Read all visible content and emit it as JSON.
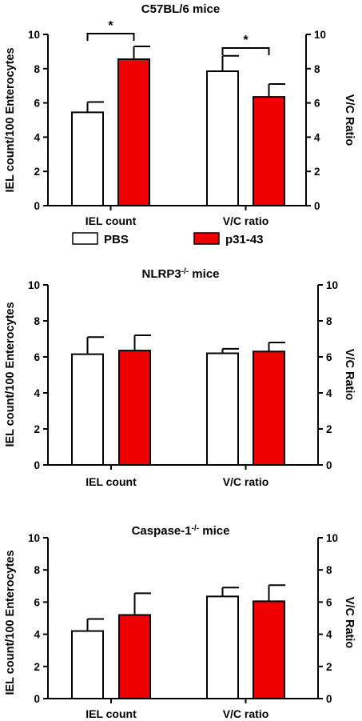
{
  "legend": {
    "items": [
      {
        "label": "PBS",
        "color": "#ffffff"
      },
      {
        "label": "p31-43",
        "color": "#ee0000"
      }
    ]
  },
  "chart_data": [
    {
      "type": "bar",
      "title": "C57BL/6 mice",
      "title_sup": "",
      "title_suffix": "",
      "categories": [
        "IEL count",
        "V/C ratio"
      ],
      "ylabel": "IEL count/100 Enterocytes",
      "y2label": "V/C Ratio",
      "ylim": [
        0,
        10
      ],
      "y2lim": [
        0,
        10
      ],
      "yticks": [
        "0",
        "2",
        "4",
        "6",
        "8",
        "10"
      ],
      "series": [
        {
          "name": "PBS",
          "color": "#ffffff",
          "values": [
            5.45,
            7.85
          ],
          "errors": [
            0.6,
            0.9
          ]
        },
        {
          "name": "p31-43",
          "color": "#ee0000",
          "values": [
            8.55,
            6.35
          ],
          "errors": [
            0.75,
            0.75
          ]
        }
      ],
      "significance": [
        {
          "category": 0,
          "label": "*"
        },
        {
          "category": 1,
          "label": "*"
        }
      ]
    },
    {
      "type": "bar",
      "title": "NLRP3",
      "title_sup": "-/-",
      "title_suffix": " mice",
      "categories": [
        "IEL count",
        "V/C ratio"
      ],
      "ylabel": "IEL count/100 Enterocytes",
      "y2label": "V/C Ratio",
      "ylim": [
        0,
        10
      ],
      "y2lim": [
        0,
        10
      ],
      "yticks": [
        "0",
        "2",
        "4",
        "6",
        "8",
        "10"
      ],
      "series": [
        {
          "name": "PBS",
          "color": "#ffffff",
          "values": [
            6.15,
            6.2
          ],
          "errors": [
            0.95,
            0.25
          ]
        },
        {
          "name": "p31-43",
          "color": "#ee0000",
          "values": [
            6.35,
            6.3
          ],
          "errors": [
            0.85,
            0.5
          ]
        }
      ],
      "significance": []
    },
    {
      "type": "bar",
      "title": "Caspase-1",
      "title_sup": "-/-",
      "title_suffix": " mice",
      "categories": [
        "IEL count",
        "V/C ratio"
      ],
      "ylabel": "IEL count/100 Enterocytes",
      "y2label": "V/C Ratio",
      "ylim": [
        0,
        10
      ],
      "y2lim": [
        0,
        10
      ],
      "yticks": [
        "0",
        "2",
        "4",
        "6",
        "8",
        "10"
      ],
      "series": [
        {
          "name": "PBS",
          "color": "#ffffff",
          "values": [
            4.2,
            6.35
          ],
          "errors": [
            0.75,
            0.55
          ]
        },
        {
          "name": "p31-43",
          "color": "#ee0000",
          "values": [
            5.2,
            6.05
          ],
          "errors": [
            1.35,
            1.0
          ]
        }
      ],
      "significance": []
    }
  ]
}
